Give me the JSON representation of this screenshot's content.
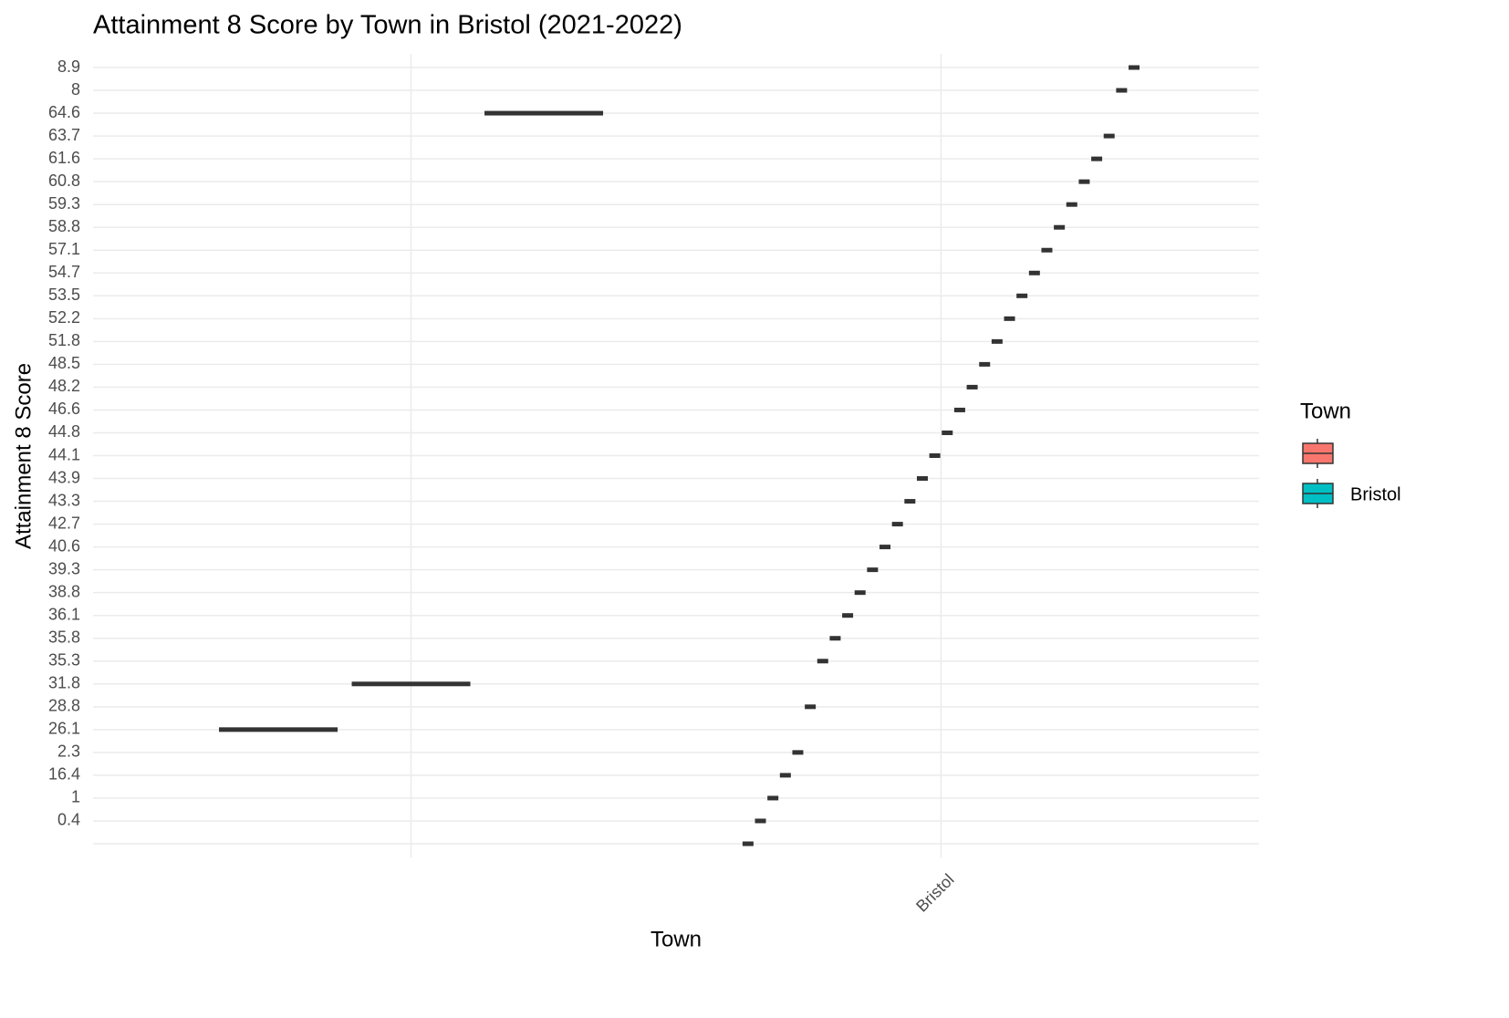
{
  "chart_data": {
    "type": "boxplot",
    "title": "Attainment 8 Score by Town in Bristol (2021-2022)",
    "x_label": "Town",
    "y_label": "Attainment 8 Score",
    "categories": [
      null,
      "Bristol"
    ],
    "yticks": [
      null,
      "0.4",
      "1",
      "16.4",
      "2.3",
      "26.1",
      "28.8",
      "31.8",
      "35.3",
      "35.8",
      "36.1",
      "38.8",
      "39.3",
      "40.6",
      "42.7",
      "43.3",
      "43.9",
      "44.1",
      "44.8",
      "46.6",
      "48.2",
      "48.5",
      "51.8",
      "52.2",
      "53.5",
      "54.7",
      "57.1",
      "58.8",
      "59.3",
      "60.8",
      "61.6",
      "63.7",
      "64.6",
      "8",
      "8.9"
    ],
    "legend_title": "Town",
    "legend_position": "right",
    "grid": true,
    "series": [
      {
        "name": null,
        "color": "#F8766D",
        "values": [
          "26.1",
          "31.8",
          "64.6"
        ]
      },
      {
        "name": "Bristol",
        "color": "#00BFC4",
        "values": [
          null,
          "0.4",
          "1",
          "16.4",
          "2.3",
          "28.8",
          "35.3",
          "35.8",
          "36.1",
          "38.8",
          "39.3",
          "40.6",
          "42.7",
          "43.3",
          "43.9",
          "44.1",
          "44.8",
          "46.6",
          "48.2",
          "48.5",
          "51.8",
          "52.2",
          "53.5",
          "54.7",
          "57.1",
          "58.8",
          "59.3",
          "60.8",
          "61.6",
          "63.7",
          "8",
          "8.9"
        ]
      }
    ]
  }
}
